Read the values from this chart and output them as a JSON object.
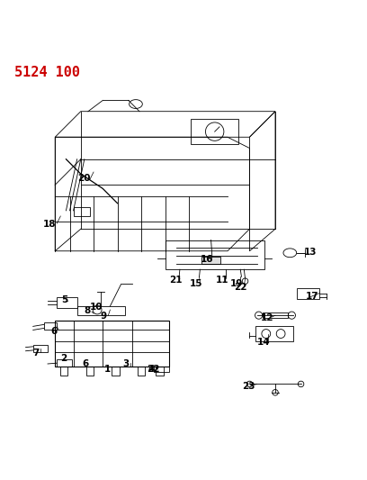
{
  "title": "5124 100",
  "title_color": "#cc0000",
  "title_fontsize": 11,
  "background_color": "#ffffff",
  "figsize": [
    4.08,
    5.33
  ],
  "dpi": 100,
  "label_fontsize": 7.5,
  "label_color": "#000000",
  "line_color": "#000000",
  "line_width": 0.6
}
